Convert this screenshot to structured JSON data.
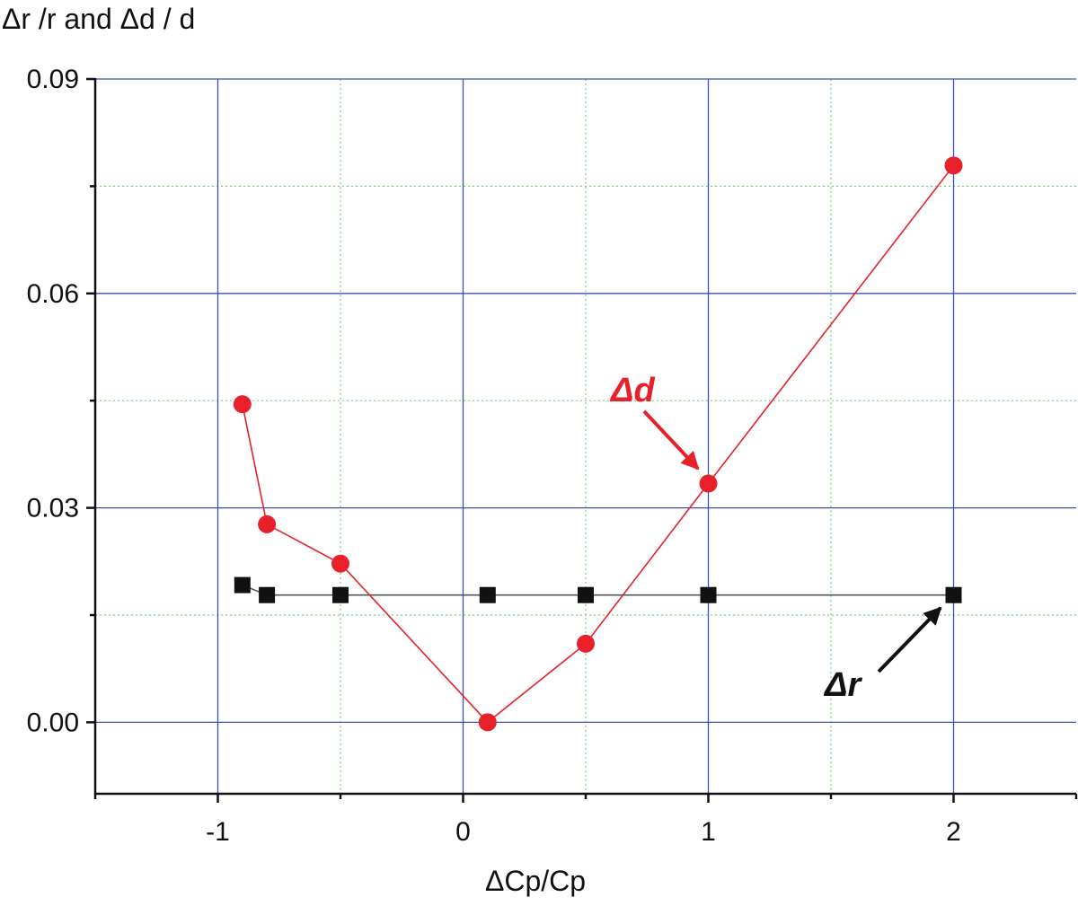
{
  "chart_data": {
    "type": "line",
    "ylabel": "Δr /r and Δd / d",
    "xlabel": "ΔCp/Cp",
    "xlim": [
      -1.5,
      2.5
    ],
    "ylim": [
      -0.01,
      0.09
    ],
    "x_ticks": [
      "-1",
      "0",
      "1",
      "2"
    ],
    "y_ticks": [
      "0.00",
      "0.03",
      "0.06",
      "0.09"
    ],
    "grid": true,
    "series": [
      {
        "name": "Δd",
        "color": "#e8202a",
        "marker": "circle",
        "x": [
          -0.9,
          -0.8,
          -0.5,
          0.1,
          0.5,
          1.0,
          2.0
        ],
        "y": [
          0.0445,
          0.0277,
          0.0222,
          0.0,
          0.011,
          0.0334,
          0.0779
        ]
      },
      {
        "name": "Δr",
        "color": "#111111",
        "marker": "square",
        "x": [
          -0.9,
          -0.8,
          -0.5,
          0.1,
          0.5,
          1.0,
          2.0
        ],
        "y": [
          0.0192,
          0.0178,
          0.0178,
          0.0178,
          0.0178,
          0.0178,
          0.0178
        ]
      }
    ],
    "annotations": [
      {
        "text": "Δd",
        "color": "#e8202a",
        "points_to_series": 0,
        "points_to_index": 5
      },
      {
        "text": "Δr",
        "color": "#111111",
        "points_to_series": 1,
        "points_to_index": 6
      }
    ]
  }
}
